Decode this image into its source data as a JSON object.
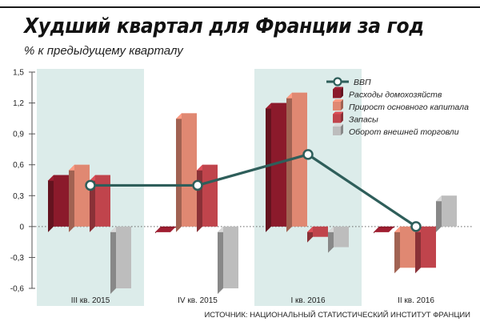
{
  "chart_data": {
    "type": "bar",
    "title": "Худший квартал для Франции за год",
    "subtitle": "% к предыдущему кварталу",
    "categories": [
      "III кв. 2015",
      "IV кв. 2015",
      "I кв. 2016",
      "II кв. 2016"
    ],
    "ylim": [
      -0.6,
      1.5
    ],
    "yticks": [
      "1,5",
      "1,2",
      "0,9",
      "0,6",
      "0,3",
      "0",
      "-0,3",
      "-0,6"
    ],
    "ytick_values": [
      1.5,
      1.2,
      0.9,
      0.6,
      0.3,
      0,
      -0.3,
      -0.6
    ],
    "highlighted_categories": [
      0,
      2
    ],
    "series": [
      {
        "name": "Расходы домохозяйств",
        "values": [
          0.5,
          0.0,
          1.2,
          0.0
        ],
        "color": "#8b1a2b"
      },
      {
        "name": "Прирост основного капитала",
        "values": [
          0.6,
          1.1,
          1.3,
          -0.4
        ],
        "color": "#e08872"
      },
      {
        "name": "Запасы",
        "values": [
          0.5,
          0.6,
          -0.1,
          -0.4
        ],
        "color": "#c0444c"
      },
      {
        "name": "Оборот внешней торговли",
        "values": [
          -0.6,
          -0.6,
          -0.2,
          0.3
        ],
        "color": "#bdbdbd"
      }
    ],
    "line_series": {
      "name": "ВВП",
      "values": [
        0.4,
        0.4,
        0.7,
        0.0
      ],
      "color": "#2e5e5a"
    },
    "legend_position": "top-right",
    "grid": false,
    "source": "ИСТОЧНИК: НАЦИОНАЛЬНЫЙ СТАТИСТИЧЕСКИЙ ИНСТИТУТ ФРАНЦИИ"
  }
}
